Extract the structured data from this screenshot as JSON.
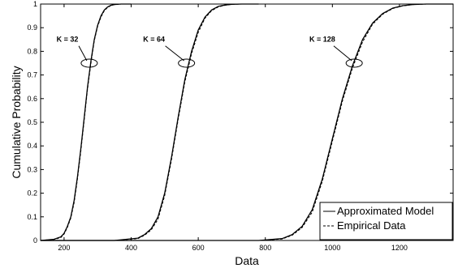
{
  "chart_data": {
    "type": "line",
    "xlabel": "Data",
    "ylabel": "Cumulative Probability",
    "xlim": [
      130,
      1360
    ],
    "ylim": [
      0,
      1
    ],
    "x_ticks": [
      200,
      400,
      600,
      800,
      1000,
      1200
    ],
    "y_ticks": [
      0,
      0.1,
      0.2,
      0.3,
      0.4,
      0.5,
      0.6,
      0.7,
      0.8,
      0.9,
      1
    ],
    "grid": false,
    "legend_position": "bottom-right",
    "series": [
      {
        "name": "Approximated Model",
        "style": "solid",
        "color": "#000000",
        "groups": [
          {
            "x": [
              130,
              170,
              190,
              200,
              210,
              220,
              230,
              240,
              250,
              260,
              270,
              280,
              290,
              300,
              310,
              320,
              330,
              340,
              350,
              370,
              400
            ],
            "y": [
              0,
              0.005,
              0.015,
              0.03,
              0.06,
              0.1,
              0.17,
              0.27,
              0.39,
              0.52,
              0.65,
              0.76,
              0.85,
              0.91,
              0.95,
              0.975,
              0.988,
              0.995,
              0.998,
              1,
              1
            ]
          },
          {
            "x": [
              130,
              350,
              420,
              440,
              460,
              480,
              500,
              520,
              540,
              560,
              580,
              600,
              620,
              640,
              660,
              680,
              700,
              730,
              780
            ],
            "y": [
              0,
              0,
              0.01,
              0.025,
              0.05,
              0.1,
              0.2,
              0.35,
              0.52,
              0.68,
              0.8,
              0.89,
              0.945,
              0.975,
              0.99,
              0.996,
              0.999,
              1,
              1
            ]
          },
          {
            "x": [
              130,
              780,
              850,
              880,
              910,
              940,
              970,
              1000,
              1030,
              1060,
              1090,
              1120,
              1150,
              1180,
              1210,
              1240,
              1280,
              1360
            ],
            "y": [
              0,
              0,
              0.008,
              0.025,
              0.06,
              0.13,
              0.26,
              0.43,
              0.6,
              0.74,
              0.85,
              0.92,
              0.96,
              0.983,
              0.993,
              0.998,
              1,
              1
            ]
          }
        ]
      },
      {
        "name": "Empirical Data",
        "style": "dashed",
        "color": "#000000",
        "groups": [
          {
            "x": [
              130,
              170,
              190,
              200,
              210,
              220,
              230,
              240,
              250,
              260,
              270,
              280,
              290,
              300,
              310,
              320,
              330,
              340,
              350,
              370,
              400
            ],
            "y": [
              0,
              0.004,
              0.012,
              0.027,
              0.055,
              0.095,
              0.16,
              0.26,
              0.38,
              0.51,
              0.64,
              0.75,
              0.845,
              0.905,
              0.945,
              0.972,
              0.986,
              0.994,
              0.998,
              1,
              1
            ]
          },
          {
            "x": [
              130,
              350,
              420,
              440,
              460,
              480,
              500,
              520,
              540,
              560,
              580,
              600,
              620,
              640,
              660,
              680,
              700,
              730,
              780
            ],
            "y": [
              0,
              0,
              0.008,
              0.022,
              0.045,
              0.09,
              0.19,
              0.34,
              0.51,
              0.67,
              0.79,
              0.88,
              0.94,
              0.972,
              0.988,
              0.995,
              0.999,
              1,
              1
            ]
          },
          {
            "x": [
              130,
              780,
              850,
              880,
              910,
              940,
              970,
              1000,
              1030,
              1060,
              1090,
              1120,
              1150,
              1180,
              1210,
              1240,
              1280,
              1360
            ],
            "y": [
              0,
              0,
              0.006,
              0.022,
              0.055,
              0.12,
              0.25,
              0.42,
              0.59,
              0.73,
              0.84,
              0.915,
              0.957,
              0.981,
              0.992,
              0.998,
              1,
              1
            ]
          }
        ]
      }
    ],
    "annotations": [
      {
        "text": "K = 32",
        "text_x": 210,
        "text_y": 0.84,
        "ellipse_x": 275,
        "ellipse_y": 0.75
      },
      {
        "text": "K = 64",
        "text_x": 468,
        "text_y": 0.84,
        "ellipse_x": 565,
        "ellipse_y": 0.75
      },
      {
        "text": "K = 128",
        "text_x": 970,
        "text_y": 0.84,
        "ellipse_x": 1065,
        "ellipse_y": 0.75
      }
    ]
  }
}
